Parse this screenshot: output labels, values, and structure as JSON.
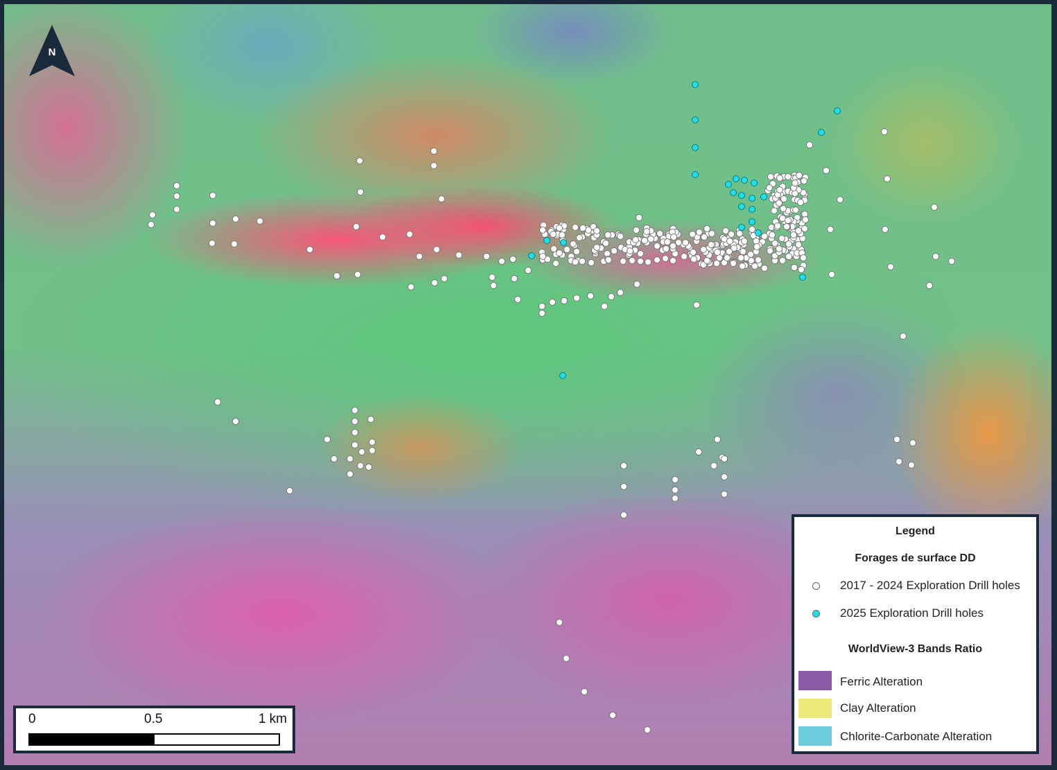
{
  "map": {
    "north_arrow_label": "N"
  },
  "legend": {
    "title": "Legend",
    "drill_section_title": "Forages de surface DD",
    "drill_items": [
      {
        "label": "2017 - 2024 Exploration Drill holes",
        "color": "#ffffff"
      },
      {
        "label": "2025 Exploration Drill holes",
        "color": "#1fe0ea"
      }
    ],
    "bands_section_title": "WorldView-3 Bands Ratio",
    "band_items": [
      {
        "label": "Ferric Alteration",
        "color": "#8a5aa8"
      },
      {
        "label": "Clay Alteration",
        "color": "#ece878"
      },
      {
        "label": "Chlorite-Carbonate Alteration",
        "color": "#6ccbdc"
      }
    ]
  },
  "scale_bar": {
    "labels": [
      "0",
      "0.5",
      "1 km"
    ]
  }
}
